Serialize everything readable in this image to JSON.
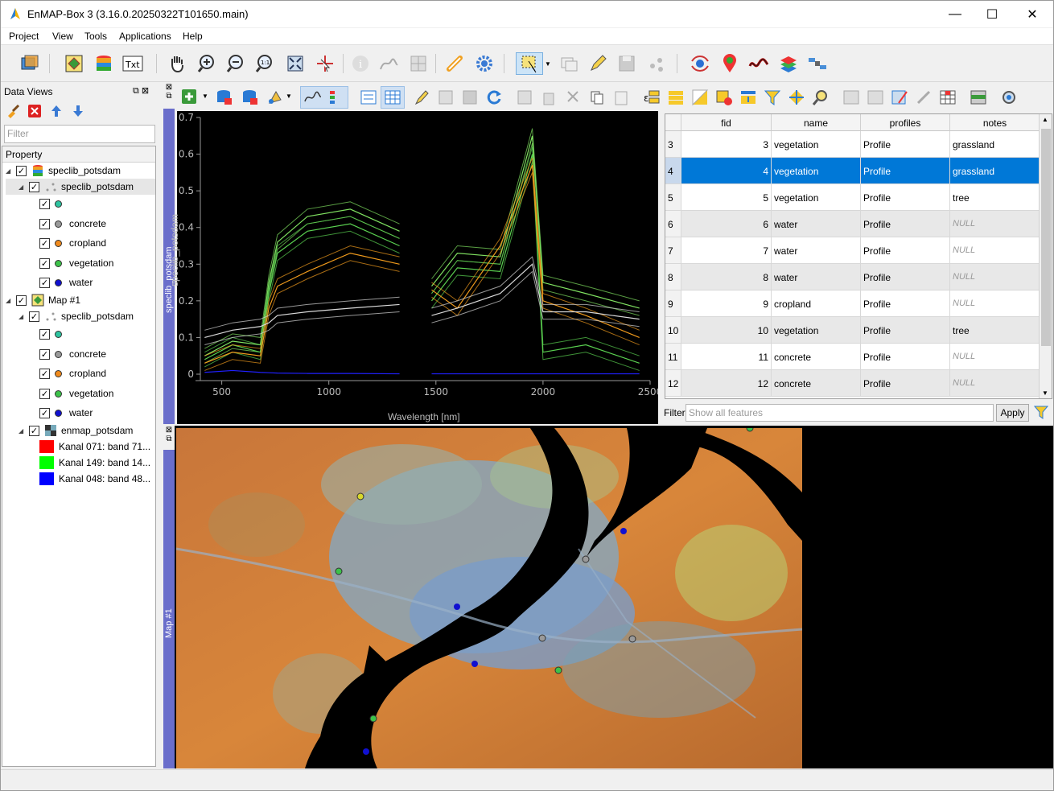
{
  "window": {
    "title": "EnMAP-Box 3 (3.16.0.20250322T101650.main)",
    "minimize": "—",
    "maximize": "☐",
    "close": "✕"
  },
  "menu": [
    "Project",
    "View",
    "Tools",
    "Applications",
    "Help"
  ],
  "data_views": {
    "title": "Data Views",
    "filter_placeholder": "Filter",
    "tree_header": "Property",
    "items": [
      {
        "label": "speclib_potsdam"
      },
      {
        "label": "speclib_potsdam"
      },
      {
        "label": ""
      },
      {
        "label": "concrete"
      },
      {
        "label": "cropland"
      },
      {
        "label": "vegetation"
      },
      {
        "label": "water"
      },
      {
        "label": "Map #1"
      },
      {
        "label": "speclib_potsdam"
      },
      {
        "label": ""
      },
      {
        "label": "concrete"
      },
      {
        "label": "cropland"
      },
      {
        "label": "vegetation"
      },
      {
        "label": "water"
      },
      {
        "label": "enmap_potsdam"
      },
      {
        "label": "Kanal 071: band 71..."
      },
      {
        "label": "Kanal 149: band 14..."
      },
      {
        "label": "Kanal 048: band 48..."
      }
    ],
    "colors": {
      "teal": "#2ec4a0",
      "concrete": "#9a9a9a",
      "cropland": "#f08a1c",
      "vegetation": "#3cc24a",
      "water": "#1010d0",
      "red": "#ff0000",
      "green": "#00ff00",
      "blue": "#0000ff"
    }
  },
  "speclib_dock_label": "speclib_potsdam",
  "map_dock_label": "Map #1",
  "plot": {
    "y_ticks": [
      "0",
      "0.1",
      "0.2",
      "0.3",
      "0.4",
      "0.5",
      "0.6",
      "0.7"
    ],
    "x_ticks": [
      "500",
      "1000",
      "1500",
      "2000",
      "2500"
    ],
    "xlabel": "Wavelength [nm]",
    "ylabel": "speclib_potsdam"
  },
  "chart_data": {
    "type": "line",
    "title": "",
    "xlabel": "Wavelength [nm]",
    "ylabel": "speclib_potsdam",
    "xlim": [
      400,
      2500
    ],
    "ylim": [
      0,
      0.7
    ],
    "series": [
      {
        "name": "vegetation",
        "color": "#7fe060",
        "x": [
          420,
          550,
          680,
          720,
          760,
          900,
          1100,
          1330,
          1480,
          1600,
          1800,
          1950,
          2000,
          2200,
          2450
        ],
        "y": [
          0.05,
          0.09,
          0.08,
          0.25,
          0.36,
          0.43,
          0.45,
          0.39,
          0.24,
          0.33,
          0.32,
          0.65,
          0.25,
          0.22,
          0.18
        ]
      },
      {
        "name": "vegetation",
        "color": "#5ad050",
        "x": [
          420,
          550,
          680,
          720,
          760,
          900,
          1100,
          1330,
          1480,
          1600,
          1800,
          1950,
          2000,
          2200,
          2450
        ],
        "y": [
          0.04,
          0.08,
          0.06,
          0.22,
          0.33,
          0.39,
          0.41,
          0.35,
          0.2,
          0.29,
          0.28,
          0.6,
          0.06,
          0.08,
          0.03
        ]
      },
      {
        "name": "cropland",
        "color": "#f09a1c",
        "x": [
          420,
          550,
          680,
          720,
          760,
          900,
          1100,
          1330,
          1480,
          1600,
          1800,
          1950,
          2000,
          2200,
          2450
        ],
        "y": [
          0.03,
          0.06,
          0.05,
          0.18,
          0.24,
          0.28,
          0.33,
          0.3,
          0.23,
          0.18,
          0.35,
          0.57,
          0.2,
          0.16,
          0.1
        ]
      },
      {
        "name": "concrete",
        "color": "#d8d8d8",
        "x": [
          420,
          550,
          680,
          720,
          760,
          900,
          1100,
          1330,
          1480,
          1600,
          1800,
          1950,
          2000,
          2200,
          2450
        ],
        "y": [
          0.1,
          0.12,
          0.13,
          0.14,
          0.16,
          0.17,
          0.18,
          0.19,
          0.16,
          0.18,
          0.22,
          0.3,
          0.17,
          0.17,
          0.15
        ]
      },
      {
        "name": "water",
        "color": "#2020ff",
        "x": [
          420,
          550,
          680,
          720,
          760,
          900,
          1100,
          1330,
          1480,
          1600,
          1800,
          1950,
          2000,
          2200,
          2450
        ],
        "y": [
          0.005,
          0.01,
          0.005,
          0.004,
          0.003,
          0.002,
          0.002,
          0.001,
          0.001,
          0.001,
          0.001,
          0.001,
          0.001,
          0.001,
          0.001
        ]
      }
    ]
  },
  "table": {
    "columns": [
      "fid",
      "name",
      "profiles",
      "notes"
    ],
    "rows": [
      {
        "row": "3",
        "fid": "3",
        "name": "vegetation",
        "profiles": "Profile",
        "notes": "grassland",
        "selected": false
      },
      {
        "row": "4",
        "fid": "4",
        "name": "vegetation",
        "profiles": "Profile",
        "notes": "grassland",
        "selected": true
      },
      {
        "row": "5",
        "fid": "5",
        "name": "vegetation",
        "profiles": "Profile",
        "notes": "tree",
        "selected": false
      },
      {
        "row": "6",
        "fid": "6",
        "name": "water",
        "profiles": "Profile",
        "notes": "NULL",
        "selected": false
      },
      {
        "row": "7",
        "fid": "7",
        "name": "water",
        "profiles": "Profile",
        "notes": "NULL",
        "selected": false
      },
      {
        "row": "8",
        "fid": "8",
        "name": "water",
        "profiles": "Profile",
        "notes": "NULL",
        "selected": false
      },
      {
        "row": "9",
        "fid": "9",
        "name": "cropland",
        "profiles": "Profile",
        "notes": "NULL",
        "selected": false
      },
      {
        "row": "10",
        "fid": "10",
        "name": "vegetation",
        "profiles": "Profile",
        "notes": "tree",
        "selected": false
      },
      {
        "row": "11",
        "fid": "11",
        "name": "concrete",
        "profiles": "Profile",
        "notes": "NULL",
        "selected": false
      },
      {
        "row": "12",
        "fid": "12",
        "name": "concrete",
        "profiles": "Profile",
        "notes": "NULL",
        "selected": false
      }
    ],
    "filter_label": "Filter",
    "filter_placeholder": "Show all features",
    "apply_label": "Apply",
    "selection_color": "#0078d7"
  }
}
